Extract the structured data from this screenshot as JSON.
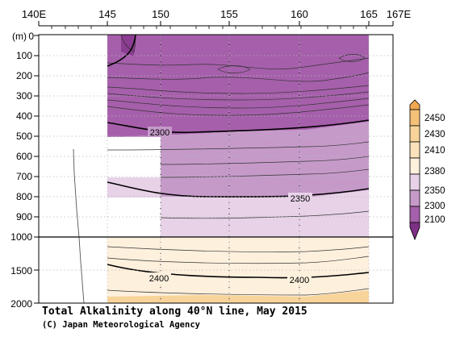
{
  "chart_data": {
    "type": "contour",
    "title": "Total Alkalinity along 40°N line, May 2015",
    "copyright": "(C) Japan Meteorological Agency",
    "y_unit_label": "(m)",
    "x_axis": {
      "range_lon": [
        140,
        167
      ],
      "tick_labels": [
        {
          "lon": 140,
          "label": "140E"
        },
        {
          "lon": 145,
          "label": "145"
        },
        {
          "lon": 150,
          "label": "150"
        },
        {
          "lon": 155,
          "label": "155"
        },
        {
          "lon": 160,
          "label": "160"
        },
        {
          "lon": 165,
          "label": "165"
        },
        {
          "lon": 167,
          "label": "167E"
        }
      ]
    },
    "y_axis": {
      "upper_panel_range_m": [
        0,
        1000
      ],
      "lower_panel_range_m": [
        1000,
        2000
      ],
      "tick_labels": [
        {
          "depth": 0,
          "label": "0"
        },
        {
          "depth": 100,
          "label": "100"
        },
        {
          "depth": 200,
          "label": "200"
        },
        {
          "depth": 300,
          "label": "300"
        },
        {
          "depth": 400,
          "label": "400"
        },
        {
          "depth": 500,
          "label": "500"
        },
        {
          "depth": 600,
          "label": "600"
        },
        {
          "depth": 700,
          "label": "700"
        },
        {
          "depth": 800,
          "label": "800"
        },
        {
          "depth": 900,
          "label": "900"
        },
        {
          "depth": 1000,
          "label": "1000"
        },
        {
          "depth": 1500,
          "label": "1500"
        },
        {
          "depth": 2000,
          "label": "2000"
        }
      ]
    },
    "colorbar": {
      "levels": [
        {
          "label": "2450",
          "color": "#f5c078"
        },
        {
          "label": "2430",
          "color": "#f8d49a"
        },
        {
          "label": "2410",
          "color": "#fbe2bc"
        },
        {
          "label": "2380",
          "color": "#fdf0dd"
        },
        {
          "label": "2350",
          "color": "#e8d2e8"
        },
        {
          "label": "2300",
          "color": "#c59ac9"
        },
        {
          "label": "2100",
          "color": "#a65fab"
        }
      ],
      "under_color": "#7e2f86",
      "over_color": "#f0a850"
    },
    "station_longitudes": [
      145,
      149,
      155,
      160,
      165
    ],
    "labeled_contours": [
      {
        "value": "2300",
        "lon": 150,
        "depth": 490
      },
      {
        "value": "2350",
        "lon": 160,
        "depth": 785
      },
      {
        "value": "2400",
        "lon": 150,
        "depth": 1500
      },
      {
        "value": "2400",
        "lon": 160,
        "depth": 1500
      }
    ],
    "fill_regions": [
      {
        "band": "2100-2300",
        "depth_range_m": [
          0,
          470
        ]
      },
      {
        "band": "2300-2350",
        "depth_range_m": [
          470,
          790
        ]
      },
      {
        "band": "2350-2380",
        "depth_range_m": [
          790,
          1000
        ]
      },
      {
        "band": "2380-2410",
        "depth_range_m": [
          1000,
          1950
        ]
      },
      {
        "band": "2410-2430",
        "depth_range_m": [
          1950,
          2000
        ]
      }
    ],
    "bathymetry_lon_range": [
      142,
      143
    ]
  }
}
